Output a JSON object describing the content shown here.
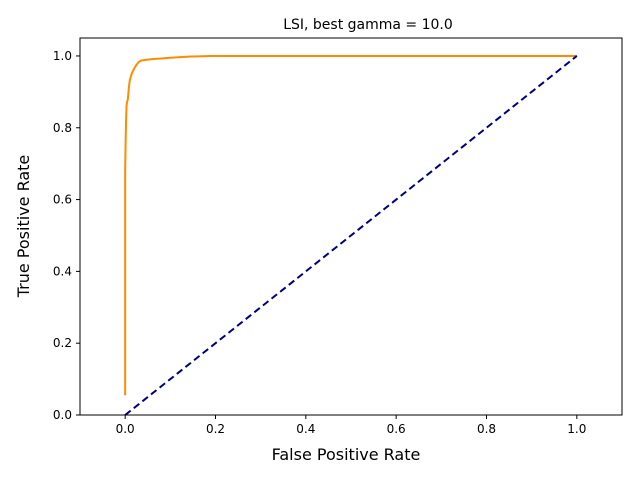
{
  "chart_data": {
    "type": "line",
    "title": "LSI, best gamma = 10.0",
    "xlabel": "False Positive Rate",
    "ylabel": "True Positive Rate",
    "xlim": [
      -0.1,
      1.1
    ],
    "ylim": [
      0.0,
      1.05
    ],
    "grid": false,
    "x_ticks": [
      "0.0",
      "0.2",
      "0.4",
      "0.6",
      "0.8",
      "1.0"
    ],
    "y_ticks": [
      "0.0",
      "0.2",
      "0.4",
      "0.6",
      "0.8",
      "1.0"
    ],
    "series": [
      {
        "color": "#ff8c00",
        "style": "solid",
        "x": [
          0.0,
          0.0,
          0.0,
          0.001,
          0.002,
          0.003,
          0.004,
          0.006,
          0.008,
          0.01,
          0.013,
          0.016,
          0.02,
          0.025,
          0.03,
          0.035,
          0.045,
          0.06,
          0.08,
          0.1,
          0.14,
          0.19,
          0.25,
          0.4,
          0.6,
          0.8,
          1.0
        ],
        "y": [
          0.055,
          0.4,
          0.68,
          0.76,
          0.82,
          0.86,
          0.87,
          0.88,
          0.91,
          0.93,
          0.945,
          0.955,
          0.965,
          0.975,
          0.983,
          0.987,
          0.989,
          0.991,
          0.993,
          0.995,
          0.998,
          1.0,
          1.0,
          1.0,
          1.0,
          1.0,
          1.0
        ]
      },
      {
        "color": "#000080",
        "style": "dashed",
        "x": [
          0.0,
          1.0
        ],
        "y": [
          0.0,
          1.0
        ]
      }
    ]
  }
}
